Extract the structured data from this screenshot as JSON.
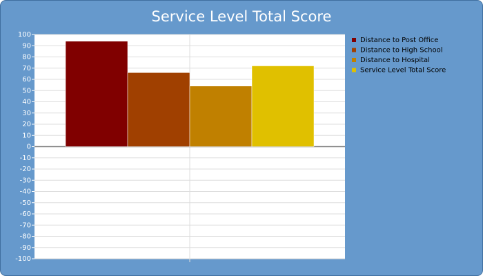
{
  "chart_data": {
    "type": "bar",
    "title": "Service Level Total Score",
    "categories": [
      null
    ],
    "series": [
      {
        "name": "Distance to Post Office",
        "color": "#800000",
        "values": [
          94
        ]
      },
      {
        "name": "Distance to High School",
        "color": "#a04000",
        "values": [
          66
        ]
      },
      {
        "name": "Distance to Hospital",
        "color": "#c08000",
        "values": [
          54
        ]
      },
      {
        "name": "Service Level Total Score",
        "color": "#e0c000",
        "values": [
          72
        ]
      }
    ],
    "ylim": [
      -100,
      100
    ],
    "yticks": [
      -100,
      -90,
      -80,
      -70,
      -60,
      -50,
      -40,
      -30,
      -20,
      -10,
      0,
      10,
      20,
      30,
      40,
      50,
      60,
      70,
      80,
      90,
      100
    ],
    "grid": true,
    "legend": "right"
  }
}
